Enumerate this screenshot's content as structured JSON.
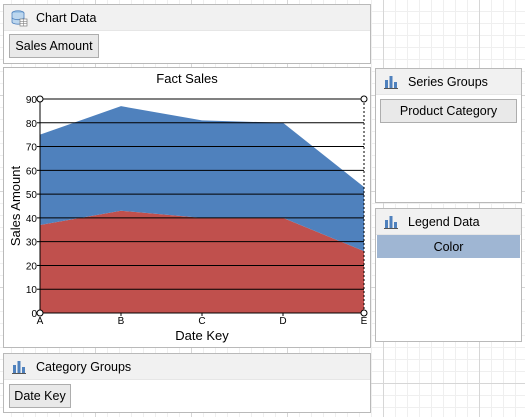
{
  "chart_data_panel": {
    "title": "Chart Data",
    "fields": [
      "Sales Amount"
    ]
  },
  "series_groups_panel": {
    "title": "Series Groups",
    "fields": [
      "Product Category"
    ]
  },
  "legend_data_panel": {
    "title": "Legend Data",
    "items": [
      "Color"
    ]
  },
  "category_groups_panel": {
    "title": "Category Groups",
    "fields": [
      "Date Key"
    ]
  },
  "chart_data": {
    "type": "area",
    "title": "Fact Sales",
    "xlabel": "Date Key",
    "ylabel": "Sales Amount",
    "categories": [
      "A",
      "B",
      "C",
      "D",
      "E"
    ],
    "ylim": [
      0,
      90
    ],
    "yticks": [
      0,
      10,
      20,
      30,
      40,
      50,
      60,
      70,
      80,
      90
    ],
    "grid": true,
    "stacked": true,
    "series": [
      {
        "values": [
          37,
          43,
          40,
          40,
          26
        ],
        "color": "#c0504d"
      },
      {
        "values": [
          38,
          44,
          41,
          40,
          27
        ],
        "color": "#4f81bd"
      }
    ]
  },
  "icons": {
    "chart_data": "database-icon",
    "series_groups": "bar-chart-icon",
    "legend_data": "bar-chart-icon",
    "category_groups": "bar-chart-icon"
  }
}
